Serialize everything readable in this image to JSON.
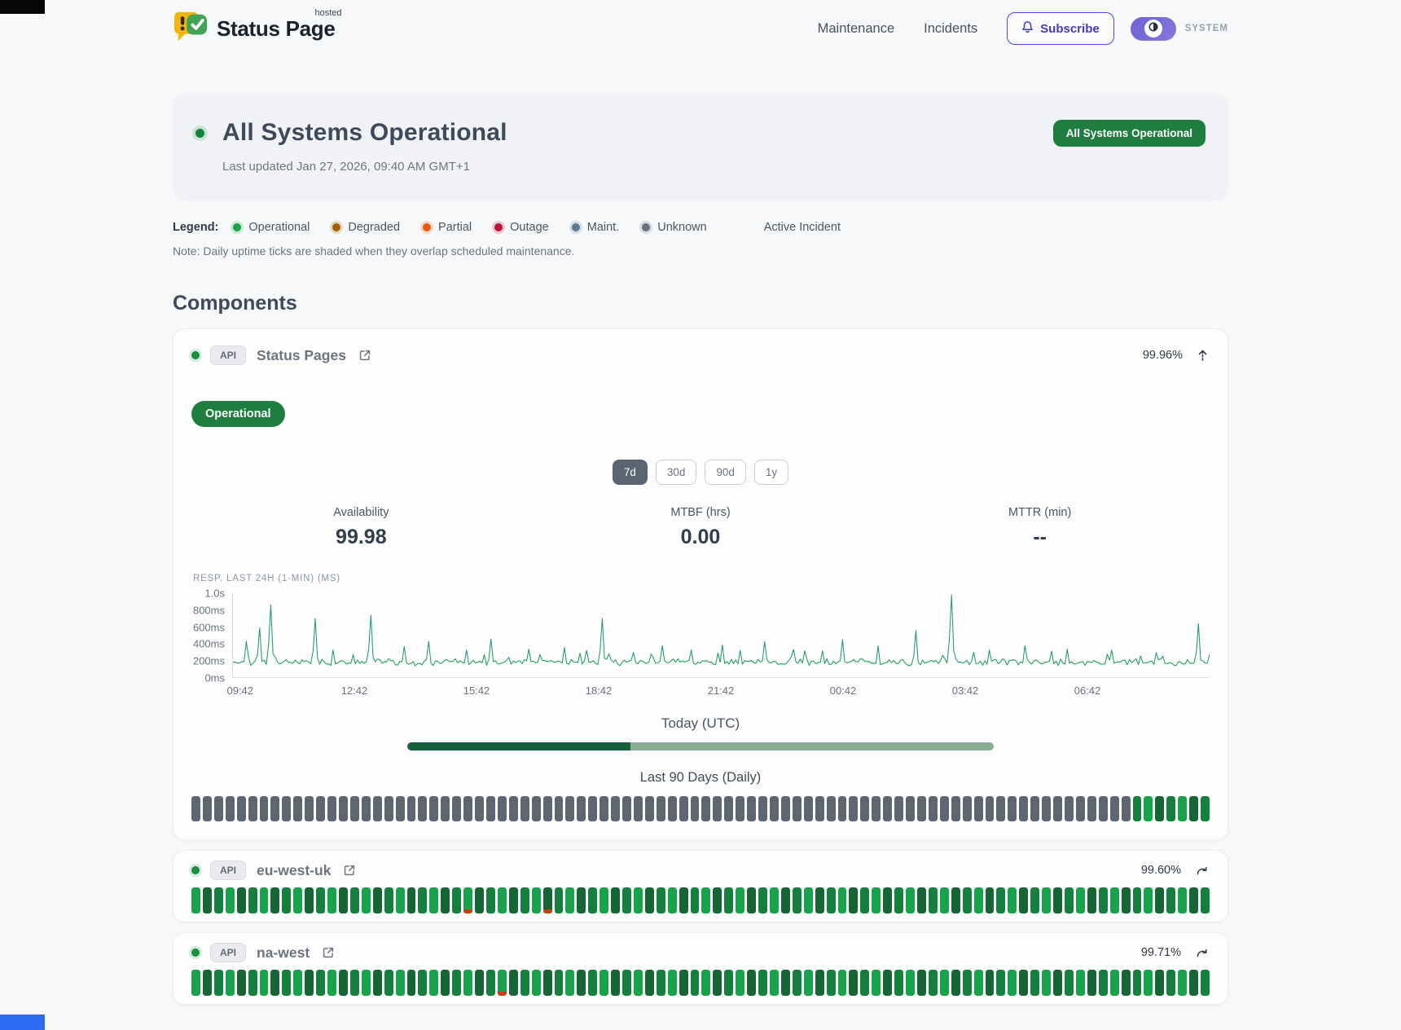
{
  "brand": {
    "name": "Status Page",
    "tag": "hosted"
  },
  "nav": {
    "maintenance": "Maintenance",
    "incidents": "Incidents",
    "subscribe": "Subscribe",
    "theme_mode": "SYSTEM"
  },
  "hero": {
    "title": "All Systems Operational",
    "last_updated": "Last updated Jan 27, 2026, 09:40 AM GMT+1",
    "badge": "All Systems Operational",
    "badge_color": "#1e7e3f"
  },
  "legend": {
    "label": "Legend:",
    "items": [
      {
        "label": "Operational",
        "color": "#16a34a"
      },
      {
        "label": "Degraded",
        "color": "#a16207"
      },
      {
        "label": "Partial",
        "color": "#ea580c"
      },
      {
        "label": "Outage",
        "color": "#be123c"
      },
      {
        "label": "Maint.",
        "color": "#5b7a94"
      },
      {
        "label": "Unknown",
        "color": "#6b7280"
      }
    ],
    "active_incident": "Active Incident",
    "note": "Note: Daily uptime ticks are shaded when they overlap scheduled maintenance."
  },
  "components": {
    "title": "Components",
    "tick_colors": {
      "no_data": "#5e6672",
      "greens": [
        "#16a34a",
        "#166534",
        "#15803d"
      ],
      "partial": "#c2410c"
    },
    "expanded": {
      "tag": "API",
      "name": "Status Pages",
      "uptime": "99.96%",
      "status": "Operational",
      "ranges": [
        {
          "label": "7d",
          "selected": true
        },
        {
          "label": "30d",
          "selected": false
        },
        {
          "label": "90d",
          "selected": false
        },
        {
          "label": "1y",
          "selected": false
        }
      ],
      "metrics": [
        {
          "label": "Availability",
          "value": "99.98"
        },
        {
          "label": "MTBF (hrs)",
          "value": "0.00"
        },
        {
          "label": "MTTR (min)",
          "value": "--"
        }
      ],
      "today": {
        "label": "Today (UTC)",
        "progress_pct": 38
      },
      "history": {
        "label": "Last 90 Days (Daily)",
        "days": 90,
        "no_data_days": 83,
        "ok_days": 7,
        "partial_day_indices": []
      }
    },
    "collapsed": [
      {
        "tag": "API",
        "name": "eu-west-uk",
        "uptime": "99.60%",
        "days": 90,
        "no_data_days": 0,
        "partial_day_indices": [
          24,
          31
        ]
      },
      {
        "tag": "API",
        "name": "na-west",
        "uptime": "99.71%",
        "days": 90,
        "no_data_days": 0,
        "partial_day_indices": [
          27
        ]
      }
    ]
  },
  "chart_data": {
    "type": "line",
    "title": "RESP. LAST 24H (1-MIN) (MS)",
    "series_name": "Response time, 1-minute samples",
    "x_ticks": [
      "09:42",
      "12:42",
      "15:42",
      "18:42",
      "21:42",
      "00:42",
      "03:42",
      "06:42"
    ],
    "y_ticks": [
      {
        "label": "1.0s",
        "ms": 1000
      },
      {
        "label": "800ms",
        "ms": 800
      },
      {
        "label": "600ms",
        "ms": 600
      },
      {
        "label": "400ms",
        "ms": 400
      },
      {
        "label": "200ms",
        "ms": 200
      },
      {
        "label": "0ms",
        "ms": 0
      }
    ],
    "y_range_ms": [
      0,
      1000
    ],
    "baseline_ms": 165,
    "noise_band_ms": [
      140,
      240
    ],
    "points_count": 440,
    "spikes": [
      [
        0.014,
        430
      ],
      [
        0.028,
        590
      ],
      [
        0.039,
        860
      ],
      [
        0.084,
        700
      ],
      [
        0.102,
        330
      ],
      [
        0.141,
        740
      ],
      [
        0.175,
        370
      ],
      [
        0.2,
        430
      ],
      [
        0.24,
        330
      ],
      [
        0.265,
        460
      ],
      [
        0.302,
        340
      ],
      [
        0.34,
        360
      ],
      [
        0.377,
        700
      ],
      [
        0.41,
        300
      ],
      [
        0.44,
        380
      ],
      [
        0.47,
        330
      ],
      [
        0.5,
        390
      ],
      [
        0.545,
        430
      ],
      [
        0.585,
        320
      ],
      [
        0.625,
        450
      ],
      [
        0.66,
        380
      ],
      [
        0.7,
        560
      ],
      [
        0.735,
        980
      ],
      [
        0.775,
        330
      ],
      [
        0.81,
        380
      ],
      [
        0.855,
        340
      ],
      [
        0.9,
        330
      ],
      [
        0.945,
        300
      ],
      [
        0.988,
        640
      ]
    ],
    "line_color": "#1f9e60",
    "grid": false,
    "legend_position": "none"
  }
}
